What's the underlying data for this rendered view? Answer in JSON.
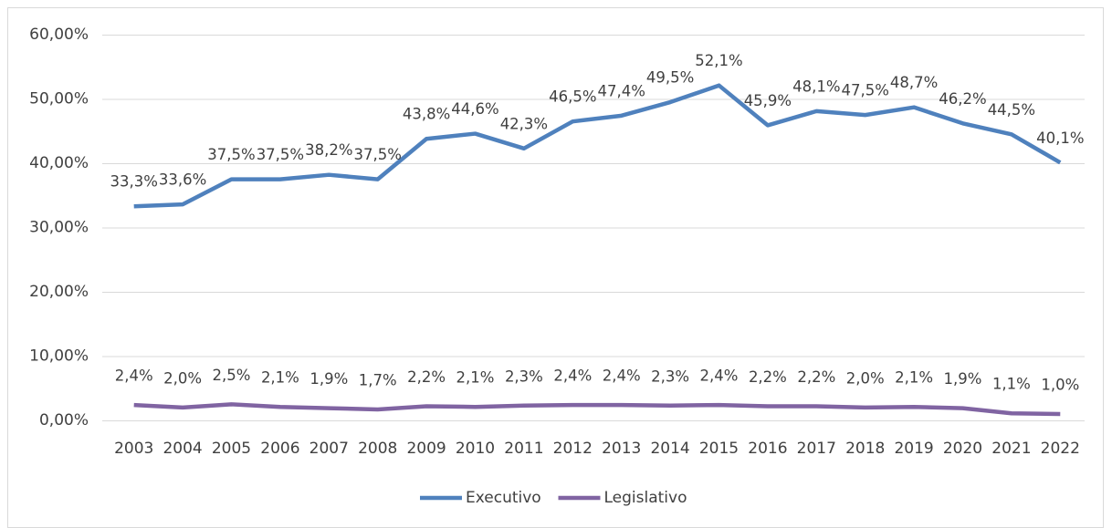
{
  "chart_data": {
    "type": "line",
    "categories": [
      "2003",
      "2004",
      "2005",
      "2006",
      "2007",
      "2008",
      "2009",
      "2010",
      "2011",
      "2012",
      "2013",
      "2014",
      "2015",
      "2016",
      "2017",
      "2018",
      "2019",
      "2020",
      "2021",
      "2022"
    ],
    "series": [
      {
        "name": "Executivo",
        "color": "#4f81bd",
        "values": [
          33.3,
          33.6,
          37.5,
          37.5,
          38.2,
          37.5,
          43.8,
          44.6,
          42.3,
          46.5,
          47.4,
          49.5,
          52.1,
          45.9,
          48.1,
          47.5,
          48.7,
          46.2,
          44.5,
          40.1
        ],
        "value_labels": [
          "33,3%",
          "33,6%",
          "37,5%",
          "37,5%",
          "38,2%",
          "37,5%",
          "43,8%",
          "44,6%",
          "42,3%",
          "46,5%",
          "47,4%",
          "49,5%",
          "52,1%",
          "45,9%",
          "48,1%",
          "47,5%",
          "48,7%",
          "46,2%",
          "44,5%",
          "40,1%"
        ]
      },
      {
        "name": "Legislativo",
        "color": "#8064a2",
        "values": [
          2.4,
          2.0,
          2.5,
          2.1,
          1.9,
          1.7,
          2.2,
          2.1,
          2.3,
          2.4,
          2.4,
          2.3,
          2.4,
          2.2,
          2.2,
          2.0,
          2.1,
          1.9,
          1.1,
          1.0
        ],
        "value_labels": [
          "2,4%",
          "2,0%",
          "2,5%",
          "2,1%",
          "1,9%",
          "1,7%",
          "2,2%",
          "2,1%",
          "2,3%",
          "2,4%",
          "2,4%",
          "2,3%",
          "2,4%",
          "2,2%",
          "2,2%",
          "2,0%",
          "2,1%",
          "1,9%",
          "1,1%",
          "1,0%"
        ]
      }
    ],
    "ylim": [
      0,
      60
    ],
    "yticks": [
      {
        "value": 0,
        "label": "0,00%"
      },
      {
        "value": 10,
        "label": "10,00%"
      },
      {
        "value": 20,
        "label": "20,00%"
      },
      {
        "value": 30,
        "label": "30,00%"
      },
      {
        "value": 40,
        "label": "40,00%"
      },
      {
        "value": 50,
        "label": "50,00%"
      },
      {
        "value": 60,
        "label": "60,00%"
      }
    ],
    "grid": true,
    "legend": "bottom"
  }
}
